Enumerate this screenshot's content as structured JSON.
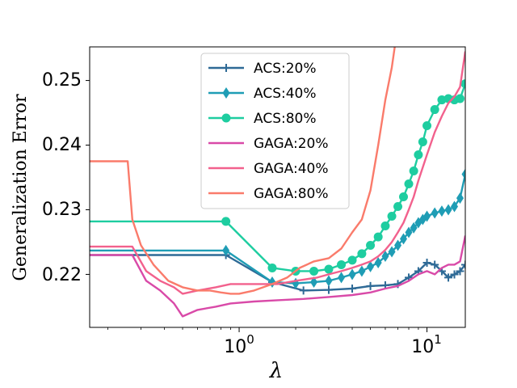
{
  "chart_data": {
    "type": "line",
    "title": "",
    "xlabel": "λ",
    "ylabel": "Generalization Error",
    "xscale": "log",
    "xlim": [
      0.16,
      16
    ],
    "ylim": [
      0.2118,
      0.2552
    ],
    "yticks": [
      0.22,
      0.23,
      0.24,
      0.25
    ],
    "ytick_labels": [
      "0.22",
      "0.23",
      "0.24",
      "0.25"
    ],
    "xticks": [
      1,
      10
    ],
    "xtick_labels": [
      {
        "base": "10",
        "exp": "0"
      },
      {
        "base": "10",
        "exp": "1"
      }
    ],
    "legend_position": "upper-center",
    "series": [
      {
        "name": "ACS:20%",
        "color": "#2e6a96",
        "marker": "plus",
        "x": [
          0.16,
          0.85,
          1.5,
          2.2,
          3.0,
          4.0,
          5.0,
          6.0,
          7.0,
          8.0,
          9.0,
          10.0,
          11.0,
          12.0,
          13.0,
          14.0,
          15.0,
          16.0
        ],
        "y": [
          0.223,
          0.223,
          0.2188,
          0.2175,
          0.2176,
          0.2178,
          0.2182,
          0.2183,
          0.2185,
          0.2195,
          0.2205,
          0.2218,
          0.2215,
          0.2205,
          0.2195,
          0.22,
          0.2205,
          0.2215
        ]
      },
      {
        "name": "ACS:40%",
        "color": "#1f9db5",
        "marker": "diamond",
        "x": [
          0.16,
          0.85,
          1.5,
          2.0,
          2.5,
          3.0,
          3.5,
          4.0,
          4.5,
          5.0,
          5.5,
          6.0,
          6.5,
          7.0,
          7.5,
          8.0,
          8.5,
          9.0,
          9.5,
          10.0,
          11.0,
          12.0,
          13.0,
          14.0,
          15.0,
          16.0
        ],
        "y": [
          0.2237,
          0.2237,
          0.2188,
          0.2186,
          0.2188,
          0.219,
          0.2195,
          0.22,
          0.2205,
          0.2212,
          0.2218,
          0.2228,
          0.2235,
          0.2245,
          0.2255,
          0.2265,
          0.2272,
          0.228,
          0.2285,
          0.229,
          0.2295,
          0.2298,
          0.23,
          0.2305,
          0.2318,
          0.2355
        ]
      },
      {
        "name": "ACS:80%",
        "color": "#1ecda0",
        "marker": "circle",
        "x": [
          0.16,
          0.85,
          1.5,
          2.0,
          2.5,
          3.0,
          3.5,
          4.0,
          4.5,
          5.0,
          5.5,
          6.0,
          6.5,
          7.0,
          7.5,
          8.0,
          8.5,
          9.0,
          9.5,
          10.0,
          11.0,
          12.0,
          13.0,
          14.0,
          15.0,
          16.0
        ],
        "y": [
          0.2282,
          0.2282,
          0.221,
          0.2205,
          0.2205,
          0.2208,
          0.2215,
          0.2222,
          0.2232,
          0.2245,
          0.2258,
          0.2275,
          0.229,
          0.2305,
          0.232,
          0.234,
          0.236,
          0.2385,
          0.2405,
          0.243,
          0.2455,
          0.247,
          0.2472,
          0.247,
          0.2472,
          0.2495
        ]
      },
      {
        "name": "GAGA:20%",
        "color": "#d94aa8",
        "marker": "none",
        "x": [
          0.16,
          0.27,
          0.32,
          0.38,
          0.45,
          0.5,
          0.6,
          0.75,
          0.9,
          1.2,
          1.6,
          2.2,
          3.0,
          4.0,
          5.0,
          6.0,
          7.0,
          8.0,
          9.0,
          10.0,
          11.0,
          12.0,
          13.0,
          14.0,
          15.0,
          16.0
        ],
        "y": [
          0.223,
          0.223,
          0.219,
          0.2175,
          0.2155,
          0.2135,
          0.2145,
          0.215,
          0.2155,
          0.2158,
          0.216,
          0.2162,
          0.2165,
          0.2168,
          0.2172,
          0.2178,
          0.2182,
          0.219,
          0.22,
          0.2205,
          0.22,
          0.221,
          0.2215,
          0.2215,
          0.222,
          0.226
        ]
      },
      {
        "name": "GAGA:40%",
        "color": "#f2618d",
        "marker": "none",
        "x": [
          0.16,
          0.27,
          0.32,
          0.38,
          0.45,
          0.5,
          0.6,
          0.75,
          0.9,
          1.2,
          1.6,
          2.0,
          2.6,
          3.0,
          3.5,
          4.0,
          4.5,
          5.0,
          5.5,
          6.0,
          6.5,
          7.0,
          7.5,
          8.0,
          8.5,
          9.0,
          10.0,
          11.0,
          12.0,
          13.0,
          14.0,
          15.0,
          16.0
        ],
        "y": [
          0.2243,
          0.2243,
          0.2205,
          0.219,
          0.218,
          0.217,
          0.2175,
          0.218,
          0.2185,
          0.2185,
          0.2185,
          0.219,
          0.2195,
          0.22,
          0.2205,
          0.221,
          0.2215,
          0.222,
          0.2228,
          0.2238,
          0.225,
          0.2265,
          0.228,
          0.23,
          0.232,
          0.2345,
          0.2385,
          0.242,
          0.2445,
          0.2465,
          0.2475,
          0.249,
          0.2545
        ]
      },
      {
        "name": "GAGA:80%",
        "color": "#fa7b6b",
        "marker": "none",
        "x": [
          0.16,
          0.255,
          0.27,
          0.3,
          0.35,
          0.42,
          0.5,
          0.6,
          0.7,
          0.8,
          0.9,
          1.0,
          1.2,
          1.5,
          1.8,
          2.1,
          2.5,
          3.0,
          3.5,
          4.0,
          4.5,
          5.0,
          5.5,
          6.0,
          6.5,
          6.8
        ],
        "y": [
          0.2375,
          0.2375,
          0.2285,
          0.2245,
          0.2215,
          0.219,
          0.218,
          0.2175,
          0.2175,
          0.2172,
          0.217,
          0.217,
          0.2175,
          0.2185,
          0.2195,
          0.221,
          0.222,
          0.2225,
          0.224,
          0.2265,
          0.2285,
          0.233,
          0.24,
          0.247,
          0.252,
          0.256
        ]
      }
    ]
  }
}
